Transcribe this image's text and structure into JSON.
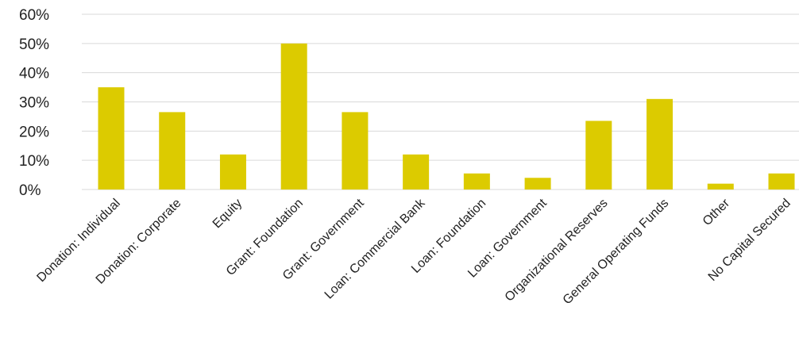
{
  "chart_data": {
    "type": "bar",
    "categories": [
      "Donation: Individual",
      "Donation: Corporate",
      "Equity",
      "Grant: Foundation",
      "Grant: Government",
      "Loan: Commercial Bank",
      "Loan: Foundation",
      "Loan: Government",
      "Organizational Reserves",
      "General Operating Funds",
      "Other",
      "No Capital Secured"
    ],
    "values": [
      35,
      26.5,
      12,
      50,
      26.5,
      12,
      5.5,
      4,
      23.5,
      31,
      2,
      5.5
    ],
    "y_ticks": [
      "0%",
      "10%",
      "20%",
      "30%",
      "40%",
      "50%",
      "60%"
    ],
    "ylim": [
      0,
      60
    ],
    "unit": "%",
    "grid": true,
    "legend": false,
    "title": "",
    "xlabel": "",
    "ylabel": "",
    "bar_color": "#dccb00",
    "grid_color": "#d9d9d9"
  }
}
